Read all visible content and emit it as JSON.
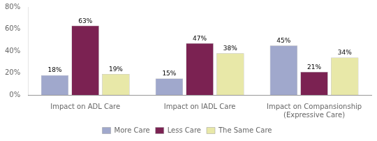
{
  "chart_data": {
    "type": "bar",
    "categories": [
      "Impact on ADL Care",
      "Impact on IADL Care",
      "Impact on Compansionship\n(Expressive Care)"
    ],
    "series": [
      {
        "name": "More Care",
        "color": "#a0a8cc",
        "values": [
          18,
          15,
          45
        ],
        "value_labels": [
          "18%",
          "15%",
          "45%"
        ]
      },
      {
        "name": "Less Care",
        "color": "#7b2252",
        "values": [
          63,
          47,
          21
        ],
        "value_labels": [
          "63%",
          "47%",
          "21%"
        ]
      },
      {
        "name": "The Same Care",
        "color": "#e8e8a8",
        "values": [
          19,
          38,
          34
        ],
        "value_labels": [
          "19%",
          "38%",
          "34%"
        ]
      }
    ],
    "ylim": [
      0,
      80
    ],
    "yticks": [
      {
        "value": 0,
        "label": "0%"
      },
      {
        "value": 20,
        "label": "20%"
      },
      {
        "value": 40,
        "label": "40%"
      },
      {
        "value": 60,
        "label": "60%"
      },
      {
        "value": 80,
        "label": "80%"
      }
    ],
    "grid": false,
    "legend": "bottom",
    "data_labels": true
  }
}
